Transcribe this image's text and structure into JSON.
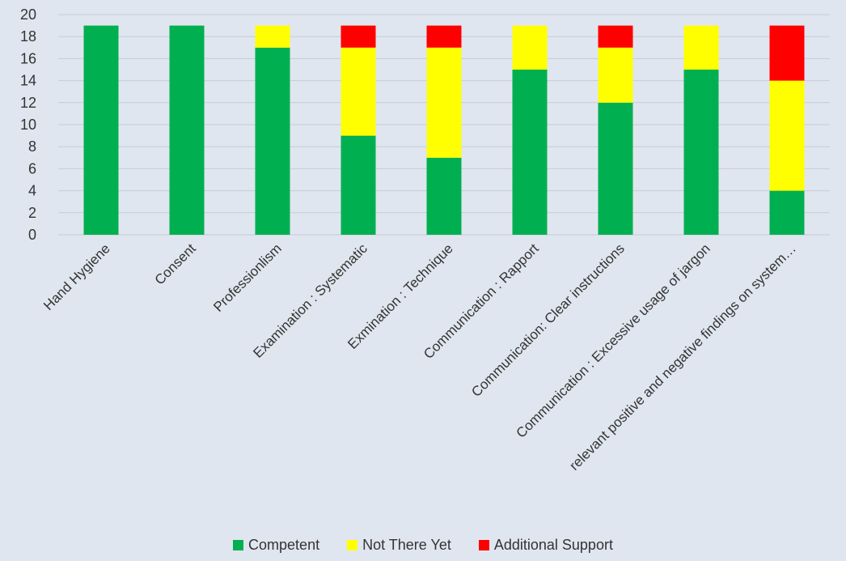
{
  "chart_data": {
    "type": "bar",
    "stacked": true,
    "categories": [
      "Hand Hygiene",
      "Consent",
      "Professionlism",
      "Examination : Systematic",
      "Exmination : Technique",
      "Communication : Rapport",
      "Communication: Clear instructions",
      "Communication : Excessive usage of jargon",
      "relevant positive and negative findings on system…"
    ],
    "series": [
      {
        "name": "Competent",
        "color": "#00b050",
        "values": [
          19,
          19,
          17,
          9,
          7,
          15,
          12,
          15,
          4
        ]
      },
      {
        "name": "Not There Yet",
        "color": "#ffff00",
        "values": [
          0,
          0,
          2,
          8,
          10,
          4,
          5,
          4,
          10
        ]
      },
      {
        "name": "Additional Support",
        "color": "#ff0000",
        "values": [
          0,
          0,
          0,
          2,
          2,
          0,
          2,
          0,
          5
        ]
      }
    ],
    "y_ticks": [
      "0",
      "2",
      "4",
      "6",
      "8",
      "10",
      "12",
      "14",
      "16",
      "18",
      "20"
    ],
    "ylim": [
      0,
      20
    ],
    "grid": true,
    "legend_position": "bottom",
    "title": "",
    "xlabel": "",
    "ylabel": ""
  }
}
